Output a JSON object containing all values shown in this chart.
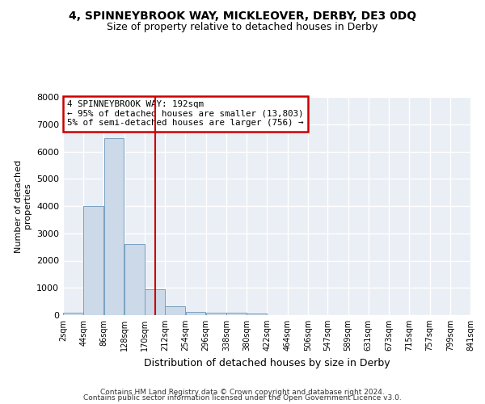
{
  "title": "4, SPINNEYBROOK WAY, MICKLEOVER, DERBY, DE3 0DQ",
  "subtitle": "Size of property relative to detached houses in Derby",
  "xlabel": "Distribution of detached houses by size in Derby",
  "ylabel": "Number of detached\nproperties",
  "bar_color": "#ccd9e8",
  "bar_edge_color": "#7aa0c0",
  "line_color": "#cc0000",
  "annotation_box_color": "#cc0000",
  "property_size": 192,
  "property_label": "4 SPINNEYBROOK WAY: 192sqm",
  "annotation_line1": "← 95% of detached houses are smaller (13,803)",
  "annotation_line2": "5% of semi-detached houses are larger (756) →",
  "x_edges": [
    2,
    44,
    86,
    128,
    170,
    212,
    254,
    296,
    338,
    380,
    422,
    464,
    506,
    547,
    589,
    631,
    673,
    715,
    757,
    799,
    841
  ],
  "bar_heights": [
    100,
    4000,
    6500,
    2600,
    950,
    320,
    120,
    80,
    80,
    50,
    0,
    0,
    0,
    0,
    0,
    0,
    0,
    0,
    0,
    0
  ],
  "x_tick_labels": [
    "2sqm",
    "44sqm",
    "86sqm",
    "128sqm",
    "170sqm",
    "212sqm",
    "254sqm",
    "296sqm",
    "338sqm",
    "380sqm",
    "422sqm",
    "464sqm",
    "506sqm",
    "547sqm",
    "589sqm",
    "631sqm",
    "673sqm",
    "715sqm",
    "757sqm",
    "799sqm",
    "841sqm"
  ],
  "ylim": [
    0,
    8000
  ],
  "yticks": [
    0,
    1000,
    2000,
    3000,
    4000,
    5000,
    6000,
    7000,
    8000
  ],
  "background_color": "#eaeef5",
  "grid_color": "#ffffff",
  "footer_line1": "Contains HM Land Registry data © Crown copyright and database right 2024.",
  "footer_line2": "Contains public sector information licensed under the Open Government Licence v3.0."
}
